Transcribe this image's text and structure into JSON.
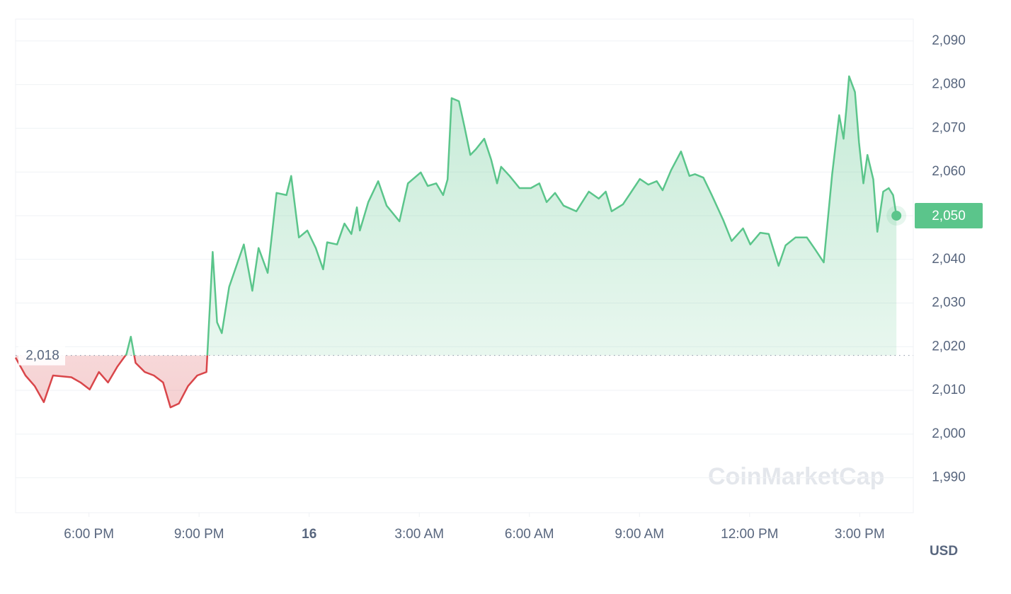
{
  "chart_data": {
    "type": "line",
    "color_up": "#5bc58b",
    "color_down": "#d9464a",
    "grid": true,
    "x": [
      16.0,
      16.27,
      16.52,
      16.77,
      17.02,
      17.52,
      17.77,
      18.02,
      18.27,
      18.52,
      18.77,
      19.02,
      19.14,
      19.27,
      19.52,
      19.77,
      20.02,
      20.22,
      20.45,
      20.7,
      20.95,
      21.2,
      21.37,
      21.49,
      21.62,
      21.82,
      22.05,
      22.22,
      22.45,
      22.62,
      22.87,
      23.11,
      23.38,
      23.51,
      23.72,
      23.95,
      24.18,
      24.38,
      24.49,
      24.76,
      24.96,
      25.15,
      25.3,
      25.38,
      25.61,
      25.88,
      26.11,
      26.46,
      26.69,
      27.04,
      27.23,
      27.46,
      27.65,
      27.77,
      27.88,
      28.08,
      28.23,
      28.39,
      28.54,
      28.77,
      28.96,
      29.12,
      29.23,
      29.46,
      29.73,
      30.04,
      30.27,
      30.47,
      30.7,
      30.93,
      31.28,
      31.62,
      31.89,
      32.08,
      32.24,
      32.55,
      32.78,
      33.01,
      33.24,
      33.47,
      33.63,
      33.86,
      34.13,
      34.36,
      34.51,
      34.74,
      34.97,
      35.28,
      35.51,
      35.82,
      36.02,
      36.29,
      36.52,
      36.79,
      36.98,
      37.25,
      37.56,
      37.79,
      38.02,
      38.25,
      38.44,
      38.56,
      38.64,
      38.71,
      38.87,
      38.98,
      39.1,
      39.21,
      39.37,
      39.48,
      39.64,
      39.79,
      39.91,
      40.0
    ],
    "values": [
      2017.5,
      2013.4,
      2011.0,
      2007.3,
      2013.4,
      2013.0,
      2011.8,
      2010.2,
      2014.2,
      2011.8,
      2015.4,
      2018.3,
      2022.3,
      2016.3,
      2014.2,
      2013.4,
      2011.8,
      2006.1,
      2007.0,
      2011.0,
      2013.4,
      2014.2,
      2041.7,
      2025.6,
      2023.1,
      2033.7,
      2039.3,
      2043.4,
      2032.8,
      2042.6,
      2036.9,
      2055.2,
      2054.7,
      2059.1,
      2045.0,
      2046.6,
      2042.6,
      2037.7,
      2043.9,
      2043.4,
      2048.2,
      2045.8,
      2051.9,
      2046.6,
      2053.1,
      2057.9,
      2052.3,
      2048.7,
      2057.4,
      2059.9,
      2056.8,
      2057.4,
      2054.7,
      2058.3,
      2076.9,
      2076.2,
      2070.4,
      2063.9,
      2065.2,
      2067.6,
      2062.8,
      2057.4,
      2061.2,
      2059.1,
      2056.3,
      2056.3,
      2057.4,
      2053.1,
      2055.2,
      2052.3,
      2051.0,
      2055.5,
      2053.9,
      2055.5,
      2051.0,
      2052.6,
      2055.5,
      2058.4,
      2057.1,
      2057.9,
      2055.8,
      2060.4,
      2064.7,
      2059.1,
      2059.5,
      2058.7,
      2054.7,
      2049.0,
      2044.2,
      2047.1,
      2043.4,
      2046.1,
      2045.8,
      2038.5,
      2043.2,
      2045.0,
      2045.0,
      2042.2,
      2039.3,
      2059.5,
      2073.0,
      2067.6,
      2074.9,
      2081.9,
      2078.3,
      2066.8,
      2057.4,
      2063.9,
      2058.3,
      2046.3,
      2055.5,
      2056.3,
      2054.7,
      2050.0
    ],
    "xlim": [
      16,
      40.46
    ],
    "xticks": [
      {
        "value": 18,
        "label": "6:00 PM"
      },
      {
        "value": 21,
        "label": "9:00 PM"
      },
      {
        "value": 24,
        "label": "16"
      },
      {
        "value": 27,
        "label": "3:00 AM"
      },
      {
        "value": 30,
        "label": "6:00 AM"
      },
      {
        "value": 33,
        "label": "9:00 AM"
      },
      {
        "value": 36,
        "label": "12:00 PM"
      },
      {
        "value": 39,
        "label": "3:00 PM"
      }
    ],
    "ylim": [
      1982,
      2095
    ],
    "yticks": [
      {
        "value": 1990,
        "label": "1,990"
      },
      {
        "value": 2000,
        "label": "2,000"
      },
      {
        "value": 2010,
        "label": "2,010"
      },
      {
        "value": 2020,
        "label": "2,020"
      },
      {
        "value": 2030,
        "label": "2,030"
      },
      {
        "value": 2040,
        "label": "2,040"
      },
      {
        "value": 2050,
        "label": "2,050"
      },
      {
        "value": 2060,
        "label": "2,060"
      },
      {
        "value": 2070,
        "label": "2,070"
      },
      {
        "value": 2080,
        "label": "2,080"
      },
      {
        "value": 2090,
        "label": "2,090"
      }
    ],
    "baseline": {
      "value": 2018,
      "label": "2,018"
    },
    "current_label": "2,050",
    "currency": "USD",
    "watermark": "CoinMarketCap"
  }
}
